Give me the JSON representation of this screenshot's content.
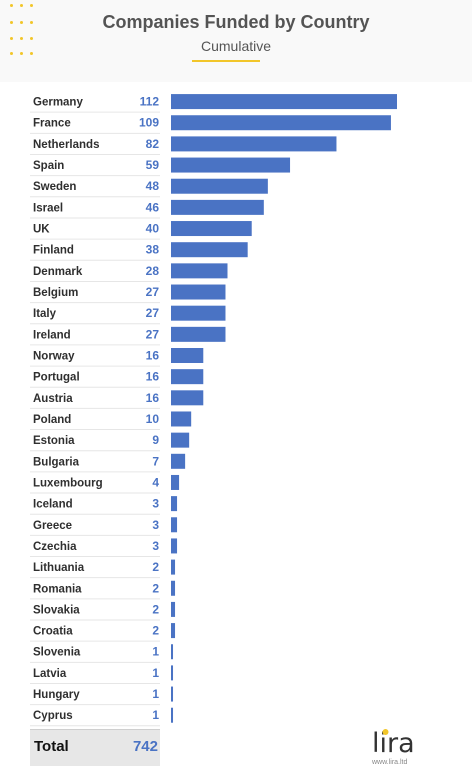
{
  "title": "Companies Funded by Country",
  "subtitle": "Cumulative",
  "colors": {
    "bar": "#4a73c4",
    "accent": "#f2c62a",
    "value_text": "#4a73c4"
  },
  "chart_data": {
    "type": "bar",
    "orientation": "horizontal",
    "categories": [
      "Germany",
      "France",
      "Netherlands",
      "Spain",
      "Sweden",
      "Israel",
      "UK",
      "Finland",
      "Denmark",
      "Belgium",
      "Italy",
      "Ireland",
      "Norway",
      "Portugal",
      "Austria",
      "Poland",
      "Estonia",
      "Bulgaria",
      "Luxembourg",
      "Iceland",
      "Greece",
      "Czechia",
      "Lithuania",
      "Romania",
      "Slovakia",
      "Croatia",
      "Slovenia",
      "Latvia",
      "Hungary",
      "Cyprus"
    ],
    "values": [
      112,
      109,
      82,
      59,
      48,
      46,
      40,
      38,
      28,
      27,
      27,
      27,
      16,
      16,
      16,
      10,
      9,
      7,
      4,
      3,
      3,
      3,
      2,
      2,
      2,
      2,
      1,
      1,
      1,
      1
    ],
    "xlim": [
      0,
      112
    ],
    "grid": false
  },
  "total": {
    "label": "Total",
    "value": "742"
  },
  "logo": {
    "url": "www.lira.ltd"
  }
}
